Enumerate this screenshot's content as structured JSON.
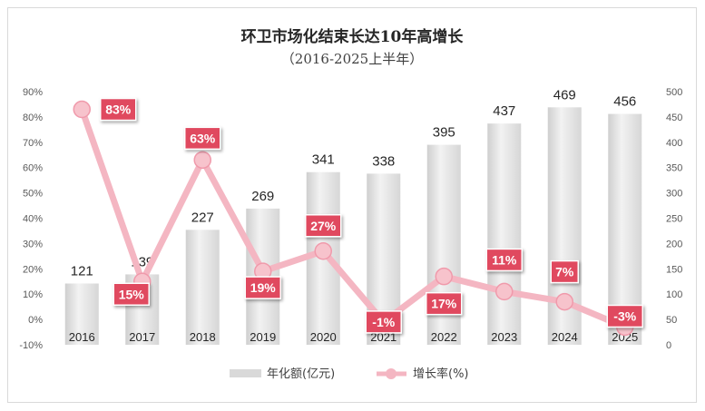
{
  "chart_data": {
    "type": "bar",
    "title": "环卫市场化结束长达10年高增长",
    "subtitle": "（2016-2025上半年）",
    "categories": [
      "2016",
      "2017",
      "2018",
      "2019",
      "2020",
      "2021",
      "2022",
      "2023",
      "2024",
      "2025"
    ],
    "series": [
      {
        "name": "年化额(亿元)",
        "type": "bar",
        "axis": "right",
        "values": [
          121,
          139,
          227,
          269,
          341,
          338,
          395,
          437,
          469,
          456
        ],
        "color": "#d9d9d9"
      },
      {
        "name": "增长率(%)",
        "type": "line",
        "axis": "left",
        "values": [
          83,
          15,
          63,
          19,
          27,
          -1,
          17,
          11,
          7,
          -3
        ],
        "labels": [
          "83%",
          "15%",
          "63%",
          "19%",
          "27%",
          "-1%",
          "17%",
          "11%",
          "7%",
          "-3%"
        ],
        "color": "#f4b6c2",
        "label_color": "#e0485f"
      }
    ],
    "left_axis": {
      "min": -10,
      "max": 90,
      "ticks": [
        "-10%",
        "0%",
        "10%",
        "20%",
        "30%",
        "40%",
        "50%",
        "60%",
        "70%",
        "80%",
        "90%"
      ]
    },
    "right_axis": {
      "min": 0,
      "max": 500,
      "ticks": [
        "0",
        "50",
        "100",
        "150",
        "200",
        "250",
        "300",
        "350",
        "400",
        "450",
        "500"
      ]
    },
    "legend": {
      "position": "bottom",
      "bar_label": "年化额(亿元)",
      "line_label": "增长率(%)"
    }
  }
}
